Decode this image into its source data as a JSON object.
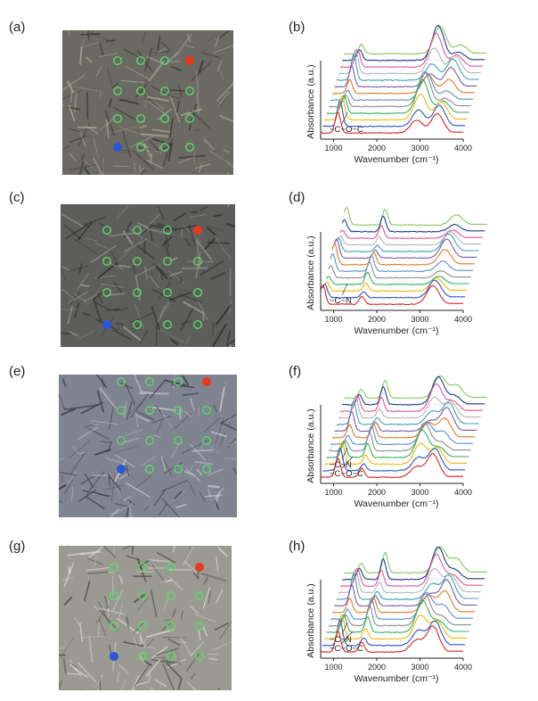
{
  "labels": {
    "a": "(a)",
    "b": "(b)",
    "c": "(c)",
    "d": "(d)",
    "e": "(e)",
    "f": "(f)",
    "g": "(g)",
    "h": "(h)"
  },
  "colors": {
    "marker_green": "#5bd96b",
    "marker_red": "#e8391c",
    "marker_blue": "#2a56d8",
    "series_palette": [
      "#d42424",
      "#2a55c7",
      "#f2b807",
      "#2fb25a",
      "#8d8d8d",
      "#5b8fd0",
      "#e07a25",
      "#7a5aa8",
      "#3aa0b8",
      "#b5b5b5",
      "#e0589a",
      "#1f3b8a",
      "#86c75a"
    ]
  },
  "chart_data": [
    {
      "id": "b",
      "type": "line",
      "title": "",
      "xlabel": "Wavenumber (cm⁻¹)",
      "ylabel": "Absorbance (a.u.)",
      "xticks": [
        "1000",
        "2000",
        "3000",
        "4000"
      ],
      "xlim": [
        700,
        4000
      ],
      "series_count": 13,
      "stacked_3d": true,
      "annotations": [
        "−C−O−C"
      ],
      "peaks": [
        [
          1100,
          0.55
        ],
        [
          2920,
          0.75
        ],
        [
          3400,
          0.45
        ]
      ]
    },
    {
      "id": "d",
      "type": "line",
      "title": "",
      "xlabel": "Wavenumber (cm⁻¹)",
      "ylabel": "Absorbance (a.u.)",
      "xticks": [
        "1000",
        "2000",
        "3000",
        "4000"
      ],
      "xlim": [
        700,
        4000
      ],
      "series_count": 13,
      "stacked_3d": true,
      "annotations": [
        "−C−N"
      ],
      "peaks": [
        [
          750,
          0.45
        ],
        [
          1650,
          0.35
        ],
        [
          3300,
          0.4
        ]
      ]
    },
    {
      "id": "f",
      "type": "line",
      "title": "",
      "xlabel": "Wavenumber (cm⁻¹)",
      "ylabel": "Absorbance (a.u.)",
      "xticks": [
        "1000",
        "2000",
        "3000",
        "4000"
      ],
      "xlim": [
        700,
        4000
      ],
      "series_count": 13,
      "stacked_3d": true,
      "annotations": [
        "−C−N",
        "−C−O−C"
      ],
      "peaks": [
        [
          1100,
          0.5
        ],
        [
          1650,
          0.4
        ],
        [
          2920,
          0.6
        ],
        [
          3300,
          0.5
        ]
      ]
    },
    {
      "id": "h",
      "type": "line",
      "title": "",
      "xlabel": "Wavenumber (cm⁻¹)",
      "ylabel": "Absorbance (a.u.)",
      "xticks": [
        "1000",
        "2000",
        "3000",
        "4000"
      ],
      "xlim": [
        700,
        4000
      ],
      "series_count": 13,
      "stacked_3d": true,
      "annotations": [
        "−C−N",
        "−C−O−C"
      ],
      "peaks": [
        [
          1100,
          0.55
        ],
        [
          1650,
          0.45
        ],
        [
          2920,
          0.7
        ],
        [
          3300,
          0.55
        ]
      ]
    }
  ]
}
